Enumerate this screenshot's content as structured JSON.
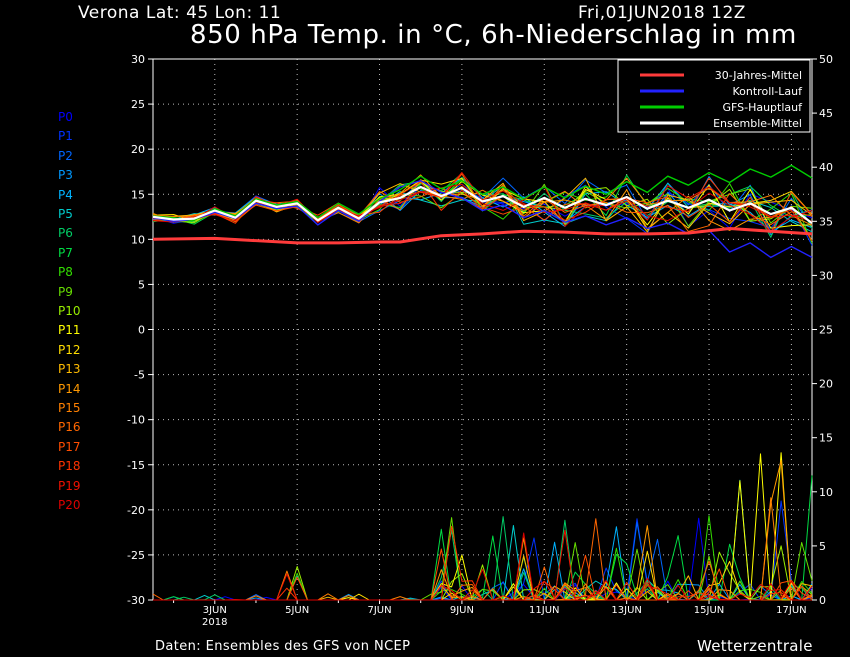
{
  "header": {
    "location": "Verona   Lat: 45 Lon: 11",
    "date": "Fri,01JUN2018 12Z",
    "title": "850 hPa Temp. in °C, 6h-Niederschlag in mm"
  },
  "footer": {
    "source": "Daten: Ensembles des GFS von NCEP",
    "brand": "Wetterzentrale"
  },
  "members": [
    {
      "label": "P0",
      "color": "#0000ff"
    },
    {
      "label": "P1",
      "color": "#0033ff"
    },
    {
      "label": "P2",
      "color": "#0066ff"
    },
    {
      "label": "P3",
      "color": "#0099ff"
    },
    {
      "label": "P4",
      "color": "#00b3ff"
    },
    {
      "label": "P5",
      "color": "#00cccc"
    },
    {
      "label": "P6",
      "color": "#00cc66"
    },
    {
      "label": "P7",
      "color": "#00dd44"
    },
    {
      "label": "P8",
      "color": "#33dd00"
    },
    {
      "label": "P9",
      "color": "#66dd00"
    },
    {
      "label": "P10",
      "color": "#99ee00"
    },
    {
      "label": "P11",
      "color": "#ffff00"
    },
    {
      "label": "P12",
      "color": "#ffdd00"
    },
    {
      "label": "P13",
      "color": "#ffbb00"
    },
    {
      "label": "P14",
      "color": "#ff9900"
    },
    {
      "label": "P15",
      "color": "#ff8000"
    },
    {
      "label": "P16",
      "color": "#ff6600"
    },
    {
      "label": "P17",
      "color": "#ff4d00"
    },
    {
      "label": "P18",
      "color": "#ff3300"
    },
    {
      "label": "P19",
      "color": "#ee1100"
    },
    {
      "label": "P20",
      "color": "#dd0000"
    }
  ],
  "chart_data": {
    "type": "line",
    "title": "850 hPa Temp. in °C, 6h-Niederschlag in mm",
    "x_ticks": [
      {
        "label": "3JUN",
        "sub": "2018"
      },
      {
        "label": "5JUN",
        "sub": ""
      },
      {
        "label": "7JUN",
        "sub": ""
      },
      {
        "label": "9JUN",
        "sub": ""
      },
      {
        "label": "11JUN",
        "sub": ""
      },
      {
        "label": "13JUN",
        "sub": ""
      },
      {
        "label": "15JUN",
        "sub": ""
      },
      {
        "label": "17JUN",
        "sub": ""
      }
    ],
    "x_range_days": [
      1.5,
      17.5
    ],
    "y_left": {
      "range": [
        -30,
        30
      ],
      "ticks": [
        "30",
        "25",
        "20",
        "15",
        "10",
        "5",
        "0",
        "-5",
        "-10",
        "-15",
        "-20",
        "-25",
        "-30"
      ]
    },
    "y_right": {
      "range": [
        0,
        50
      ],
      "ticks": [
        "50",
        "45",
        "40",
        "35",
        "30",
        "25",
        "20",
        "15",
        "10",
        "5",
        "0"
      ]
    },
    "grid": true,
    "legend": {
      "position": "top-right",
      "entries": [
        {
          "label": "30-Jahres-Mittel",
          "color": "#ff3b3b"
        },
        {
          "label": "Kontroll-Lauf",
          "color": "#2222ff"
        },
        {
          "label": "GFS-Hauptlauf",
          "color": "#00cc00"
        },
        {
          "label": "Ensemble-Mittel",
          "color": "#ffffff"
        }
      ]
    },
    "series": [
      {
        "name": "30-Jahres-Mittel",
        "axis": "left",
        "color": "#ff3b3b",
        "x": [
          1.5,
          3,
          5,
          6,
          7,
          7.5,
          8.5,
          9.5,
          10.5,
          11.5,
          12.5,
          13.5,
          14.5,
          15.5,
          16.5,
          17.5
        ],
        "y": [
          10,
          10.1,
          9.6,
          9.6,
          9.7,
          9.7,
          10.4,
          10.6,
          10.9,
          10.8,
          10.6,
          10.6,
          10.7,
          11.2,
          10.9,
          10.6
        ]
      },
      {
        "name": "Ensemble-Mittel",
        "axis": "left",
        "color": "#ffffff",
        "x": [
          1.5,
          2,
          2.5,
          3,
          3.5,
          4,
          4.5,
          5,
          5.5,
          6,
          6.5,
          7,
          7.5,
          8,
          8.5,
          9,
          9.5,
          10,
          10.5,
          11,
          11.5,
          12,
          12.5,
          13,
          13.5,
          14,
          14.5,
          15,
          15.5,
          16,
          16.5,
          17,
          17.5
        ],
        "y": [
          12.5,
          12.2,
          12.3,
          13.2,
          12.4,
          14.3,
          13.6,
          14.0,
          12.1,
          13.5,
          12.3,
          14.1,
          14.6,
          15.8,
          14.8,
          15.7,
          14.2,
          14.8,
          13.6,
          14.6,
          13.5,
          14.5,
          13.8,
          14.7,
          13.4,
          14.3,
          13.5,
          14.4,
          13.2,
          14.0,
          12.8,
          13.5,
          11.8
        ]
      },
      {
        "name": "GFS-Hauptlauf",
        "axis": "left",
        "color": "#00cc00",
        "x": [
          1.5,
          2,
          2.5,
          3,
          3.5,
          4,
          4.5,
          5,
          5.5,
          6,
          6.5,
          7,
          7.5,
          8,
          8.5,
          9,
          9.5,
          10,
          10.5,
          11,
          11.5,
          12,
          12.5,
          13,
          13.5,
          14,
          14.5,
          15,
          15.5,
          16,
          16.5,
          17,
          17.5
        ],
        "y": [
          12.6,
          12.4,
          12.1,
          13.4,
          12.6,
          14.5,
          13.8,
          14.2,
          12.4,
          14.0,
          12.8,
          14.5,
          15.5,
          17.0,
          15.6,
          16.5,
          15.0,
          15.8,
          14.5,
          15.8,
          14.6,
          15.9,
          15.0,
          16.4,
          15.2,
          17.0,
          16.0,
          17.4,
          16.3,
          17.8,
          16.9,
          18.2,
          16.8
        ]
      },
      {
        "name": "Kontroll-Lauf",
        "axis": "left",
        "color": "#2222ff",
        "x": [
          1.5,
          2,
          2.5,
          3,
          3.5,
          4,
          4.5,
          5,
          5.5,
          6,
          6.5,
          7,
          7.5,
          8,
          8.5,
          9,
          9.5,
          10,
          10.5,
          11,
          11.5,
          12,
          12.5,
          13,
          13.5,
          14,
          14.5,
          15,
          15.5,
          16,
          16.5,
          17,
          17.5
        ],
        "y": [
          12.4,
          12.0,
          12.2,
          13.0,
          12.3,
          14.0,
          13.4,
          13.7,
          11.6,
          13.2,
          12.0,
          14.2,
          15.8,
          16.5,
          15.2,
          14.6,
          13.2,
          13.8,
          12.4,
          13.2,
          11.9,
          12.6,
          11.6,
          12.4,
          11.2,
          11.8,
          10.6,
          11.0,
          8.6,
          9.6,
          8.0,
          9.2,
          8.0
        ]
      }
    ]
  }
}
